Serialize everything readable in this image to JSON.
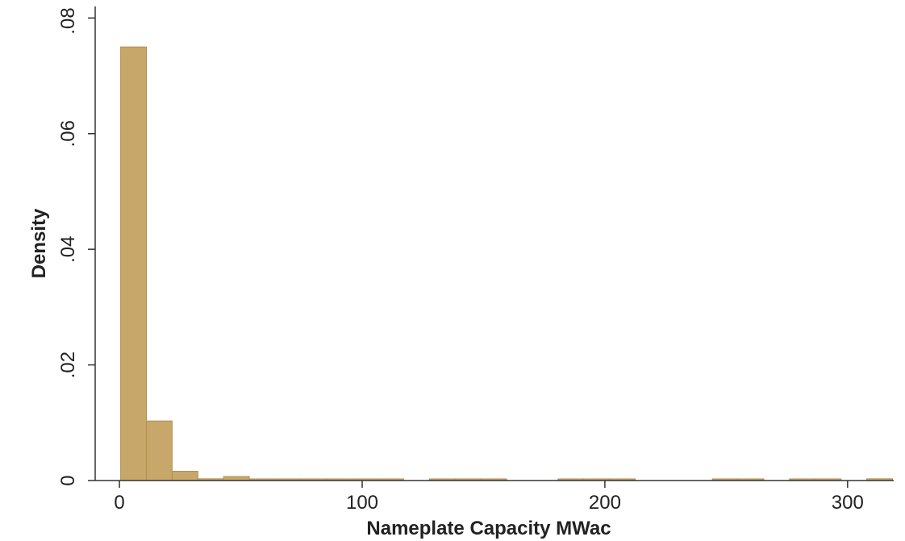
{
  "chart_data": {
    "type": "bar",
    "title": "",
    "xlabel": "Nameplate Capacity MWac",
    "ylabel": "Density",
    "xlim": [
      -10,
      319
    ],
    "ylim": [
      0,
      0.082
    ],
    "bin_width": 10.6,
    "x_ticks": [
      {
        "value": 0,
        "label": "0"
      },
      {
        "value": 100,
        "label": "100"
      },
      {
        "value": 200,
        "label": "200"
      },
      {
        "value": 300,
        "label": "300"
      }
    ],
    "y_ticks": [
      {
        "value": 0,
        "label": "0"
      },
      {
        "value": 0.02,
        "label": ".02"
      },
      {
        "value": 0.04,
        "label": ".04"
      },
      {
        "value": 0.06,
        "label": ".06"
      },
      {
        "value": 0.08,
        "label": ".08"
      }
    ],
    "bins": [
      {
        "start": 0.5,
        "density": 0.075
      },
      {
        "start": 11.1,
        "density": 0.0103
      },
      {
        "start": 21.7,
        "density": 0.0016
      },
      {
        "start": 32.3,
        "density": 0.0003
      },
      {
        "start": 42.9,
        "density": 0.0007
      },
      {
        "start": 53.5,
        "density": 0.0001
      },
      {
        "start": 64.1,
        "density": 0.0002
      },
      {
        "start": 74.7,
        "density": 0.0001
      },
      {
        "start": 85.3,
        "density": 0.0002
      },
      {
        "start": 95.9,
        "density": 0.0001
      },
      {
        "start": 106.5,
        "density": 0.0001
      },
      {
        "start": 127.7,
        "density": 0.0001
      },
      {
        "start": 138.3,
        "density": 0.0002
      },
      {
        "start": 148.9,
        "density": 0.0001
      },
      {
        "start": 180.7,
        "density": 0.0001
      },
      {
        "start": 191.3,
        "density": 0.0002
      },
      {
        "start": 201.9,
        "density": 0.0002
      },
      {
        "start": 244.3,
        "density": 0.0002
      },
      {
        "start": 254.9,
        "density": 0.0002
      },
      {
        "start": 276.1,
        "density": 0.0002
      },
      {
        "start": 286.7,
        "density": 0.0002
      },
      {
        "start": 307.9,
        "density": 0.0003
      }
    ],
    "bar_color": "#c8a86a",
    "bar_edge_color": "#b08e4e",
    "grid": false,
    "legend": "none"
  }
}
